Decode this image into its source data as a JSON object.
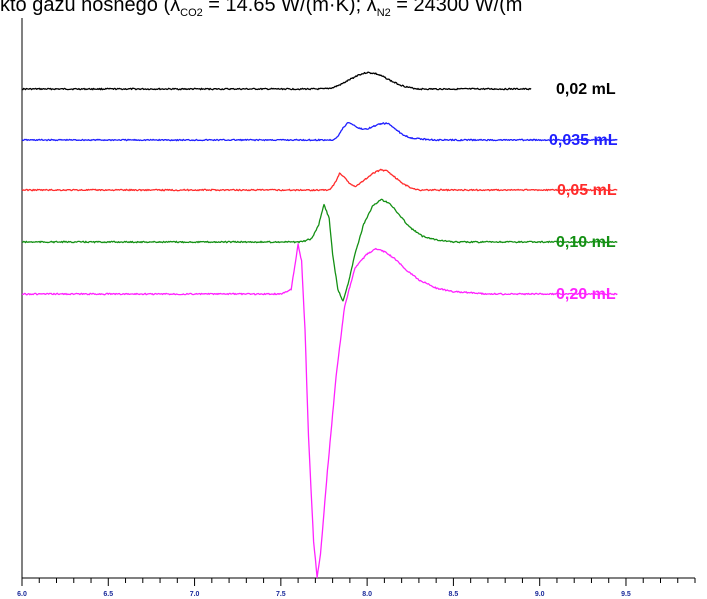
{
  "caption": {
    "p1": "kto gazu nośnego (λ",
    "s1": "CO2",
    "p2": " = 14.65 W/(m·K); λ",
    "s2": "N2",
    "p3": " = 24300 W/(m"
  },
  "chart_data": {
    "type": "line",
    "title": "",
    "xlabel": "",
    "ylabel": "",
    "xlim": [
      6.0,
      9.9
    ],
    "ticks": {
      "major": [
        6.0,
        6.5,
        7.0,
        7.5,
        8.0,
        8.5,
        9.0,
        9.5
      ],
      "labels": [
        "6.0",
        "6.5",
        "7.0",
        "7.5",
        "8.0",
        "8.5",
        "9.0",
        "9.5"
      ]
    },
    "grid": false,
    "legend": "right",
    "series": [
      {
        "name": "0,02 mL",
        "color": "#000000",
        "xrange": [
          6.0,
          8.95
        ],
        "baseline": 0,
        "points": [
          [
            6.0,
            0
          ],
          [
            7.75,
            0
          ],
          [
            7.8,
            1
          ],
          [
            7.85,
            4
          ],
          [
            7.9,
            8
          ],
          [
            7.95,
            12
          ],
          [
            8.0,
            14
          ],
          [
            8.05,
            13
          ],
          [
            8.1,
            10
          ],
          [
            8.15,
            6
          ],
          [
            8.2,
            3
          ],
          [
            8.25,
            1
          ],
          [
            8.3,
            0
          ],
          [
            8.95,
            0
          ]
        ]
      },
      {
        "name": "0,035 mL",
        "color": "#1f1fff",
        "xrange": [
          6.0,
          9.45
        ],
        "baseline": 0,
        "points": [
          [
            6.0,
            0
          ],
          [
            7.8,
            0
          ],
          [
            7.83,
            3
          ],
          [
            7.86,
            10
          ],
          [
            7.89,
            15
          ],
          [
            7.92,
            13
          ],
          [
            7.95,
            10
          ],
          [
            7.99,
            9
          ],
          [
            8.03,
            11
          ],
          [
            8.08,
            14
          ],
          [
            8.12,
            14
          ],
          [
            8.16,
            10
          ],
          [
            8.2,
            5
          ],
          [
            8.25,
            2
          ],
          [
            8.3,
            1
          ],
          [
            8.4,
            0
          ],
          [
            9.45,
            0
          ]
        ]
      },
      {
        "name": "0,05 mL",
        "color": "#ff2b2b",
        "xrange": [
          6.0,
          9.45
        ],
        "baseline": 0,
        "points": [
          [
            6.0,
            0
          ],
          [
            7.78,
            0
          ],
          [
            7.81,
            5
          ],
          [
            7.84,
            14
          ],
          [
            7.87,
            11
          ],
          [
            7.9,
            5
          ],
          [
            7.93,
            3
          ],
          [
            7.98,
            8
          ],
          [
            8.03,
            14
          ],
          [
            8.08,
            17
          ],
          [
            8.12,
            16
          ],
          [
            8.16,
            11
          ],
          [
            8.2,
            6
          ],
          [
            8.25,
            2
          ],
          [
            8.3,
            0
          ],
          [
            9.45,
            0
          ]
        ]
      },
      {
        "name": "0,10 mL",
        "color": "#149014",
        "xrange": [
          6.0,
          9.45
        ],
        "baseline": 0,
        "points": [
          [
            6.0,
            0
          ],
          [
            7.62,
            0
          ],
          [
            7.68,
            3
          ],
          [
            7.72,
            15
          ],
          [
            7.75,
            32
          ],
          [
            7.78,
            20
          ],
          [
            7.8,
            -10
          ],
          [
            7.83,
            -40
          ],
          [
            7.86,
            -50
          ],
          [
            7.89,
            -35
          ],
          [
            7.93,
            -10
          ],
          [
            7.98,
            15
          ],
          [
            8.03,
            30
          ],
          [
            8.08,
            36
          ],
          [
            8.13,
            33
          ],
          [
            8.18,
            24
          ],
          [
            8.25,
            12
          ],
          [
            8.32,
            5
          ],
          [
            8.4,
            2
          ],
          [
            8.5,
            0
          ],
          [
            9.45,
            0
          ]
        ]
      },
      {
        "name": "0,20 mL",
        "color": "#ff22ff",
        "xrange": [
          6.0,
          9.45
        ],
        "baseline": 0,
        "points": [
          [
            6.0,
            0
          ],
          [
            7.5,
            0
          ],
          [
            7.56,
            4
          ],
          [
            7.6,
            42
          ],
          [
            7.62,
            28
          ],
          [
            7.64,
            -30
          ],
          [
            7.66,
            -120
          ],
          [
            7.69,
            -210
          ],
          [
            7.71,
            -240
          ],
          [
            7.73,
            -220
          ],
          [
            7.77,
            -150
          ],
          [
            7.82,
            -70
          ],
          [
            7.87,
            -10
          ],
          [
            7.93,
            22
          ],
          [
            8.0,
            34
          ],
          [
            8.05,
            38
          ],
          [
            8.1,
            36
          ],
          [
            8.16,
            30
          ],
          [
            8.23,
            20
          ],
          [
            8.3,
            12
          ],
          [
            8.4,
            5
          ],
          [
            8.5,
            2
          ],
          [
            8.7,
            0
          ],
          [
            9.45,
            0
          ]
        ]
      }
    ]
  }
}
